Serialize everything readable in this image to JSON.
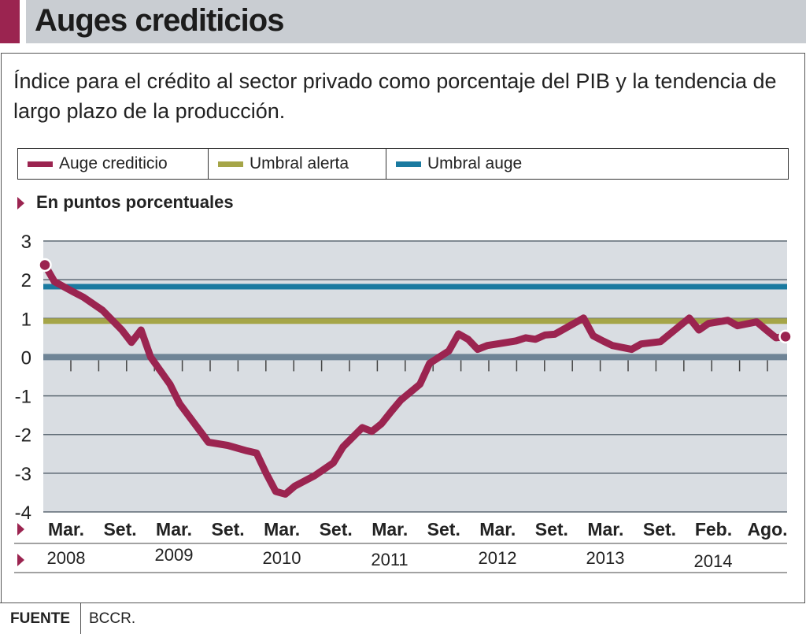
{
  "header": {
    "title": "Auges crediticios",
    "accent": "#9b2450"
  },
  "subtitle": "Índice para el crédito al sector privado como porcentaje del PIB y la tendencia de largo plazo de la producción.",
  "unit_label": "En puntos porcentuales",
  "footer": {
    "label": "FUENTE",
    "value": "BCCR."
  },
  "chart_data": {
    "type": "line",
    "ylim": [
      -4,
      3
    ],
    "yticks": [
      3,
      2,
      1,
      0,
      -1,
      -2,
      -3,
      -4
    ],
    "grid": true,
    "legend_placement": "top",
    "x_tick_labels": [
      "Mar.",
      "Set.",
      "Mar.",
      "Set.",
      "Mar.",
      "Set.",
      "Mar.",
      "Set.",
      "Mar.",
      "Set.",
      "Mar.",
      "Set.",
      "Feb.",
      "Ago."
    ],
    "year_labels": [
      "2008",
      "2009",
      "2010",
      "2011",
      "2012",
      "2013",
      "2014"
    ],
    "xrange": [
      "2008-03",
      "2014-08"
    ],
    "series": [
      {
        "name": "Auge crediticio",
        "color": "#9b2450",
        "type": "line",
        "x": [
          "2008-03",
          "2008-04",
          "2008-06",
          "2008-07",
          "2008-09",
          "2008-11",
          "2008-12",
          "2009-01",
          "2009-02",
          "2009-04",
          "2009-05",
          "2009-08",
          "2009-10",
          "2009-12",
          "2010-01",
          "2010-02",
          "2010-03",
          "2010-04",
          "2010-05",
          "2010-07",
          "2010-09",
          "2010-10",
          "2010-12",
          "2011-01",
          "2011-02",
          "2011-03",
          "2011-04",
          "2011-06",
          "2011-07",
          "2011-09",
          "2011-10",
          "2011-11",
          "2011-12",
          "2012-01",
          "2012-03",
          "2012-04",
          "2012-05",
          "2012-06",
          "2012-07",
          "2012-08",
          "2012-11",
          "2012-12",
          "2013-01",
          "2013-02",
          "2013-04",
          "2013-05",
          "2013-07",
          "2013-10",
          "2013-11",
          "2013-12",
          "2014-02",
          "2014-03",
          "2014-05",
          "2014-06",
          "2014-07",
          "2014-08"
        ],
        "y": [
          2.38,
          1.95,
          1.68,
          1.55,
          1.21,
          0.7,
          0.38,
          0.7,
          0.0,
          -0.7,
          -1.2,
          -2.2,
          -2.28,
          -2.42,
          -2.48,
          -3.0,
          -3.47,
          -3.54,
          -3.33,
          -3.07,
          -2.73,
          -2.32,
          -1.82,
          -1.92,
          -1.72,
          -1.41,
          -1.11,
          -0.7,
          -0.16,
          0.16,
          0.6,
          0.46,
          0.2,
          0.3,
          0.38,
          0.42,
          0.5,
          0.46,
          0.57,
          0.59,
          1.01,
          0.55,
          0.42,
          0.3,
          0.2,
          0.34,
          0.4,
          1.01,
          0.7,
          0.87,
          0.95,
          0.81,
          0.91,
          0.7,
          0.5,
          0.53
        ]
      },
      {
        "name": "Umbral alerta",
        "color": "#a5a548",
        "type": "hline",
        "value": 0.93
      },
      {
        "name": "Umbral auge",
        "color": "#1a7aa0",
        "type": "hline",
        "value": 1.82
      }
    ]
  }
}
